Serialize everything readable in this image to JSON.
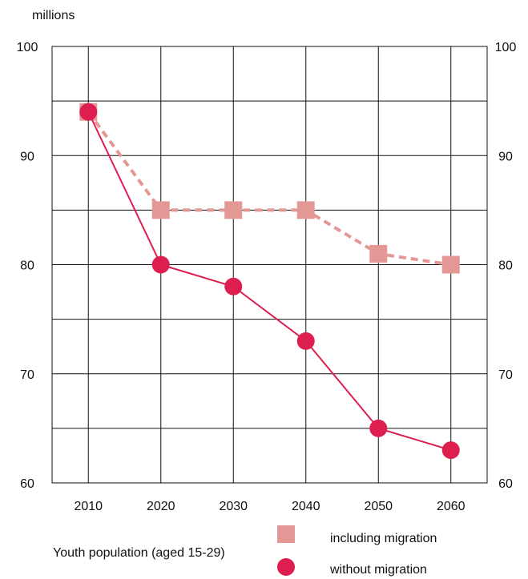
{
  "chart_data": {
    "type": "line",
    "ylabel": "millions",
    "x": [
      "2010",
      "2020",
      "2030",
      "2040",
      "2050",
      "2060"
    ],
    "ylim": [
      60,
      100
    ],
    "yticks": [
      60,
      70,
      80,
      90,
      100
    ],
    "grid": true,
    "legend": "bottom-right",
    "caption": "Youth population (aged 15-29)",
    "series": [
      {
        "name": "including migration",
        "values": [
          94,
          85,
          85,
          85,
          81,
          80
        ],
        "color": "#e49896",
        "marker": "square",
        "dash": true
      },
      {
        "name": "without migration",
        "values": [
          94,
          80,
          78,
          73,
          65,
          63
        ],
        "color": "#dc1f4f",
        "marker": "circle",
        "dash": false
      }
    ]
  }
}
